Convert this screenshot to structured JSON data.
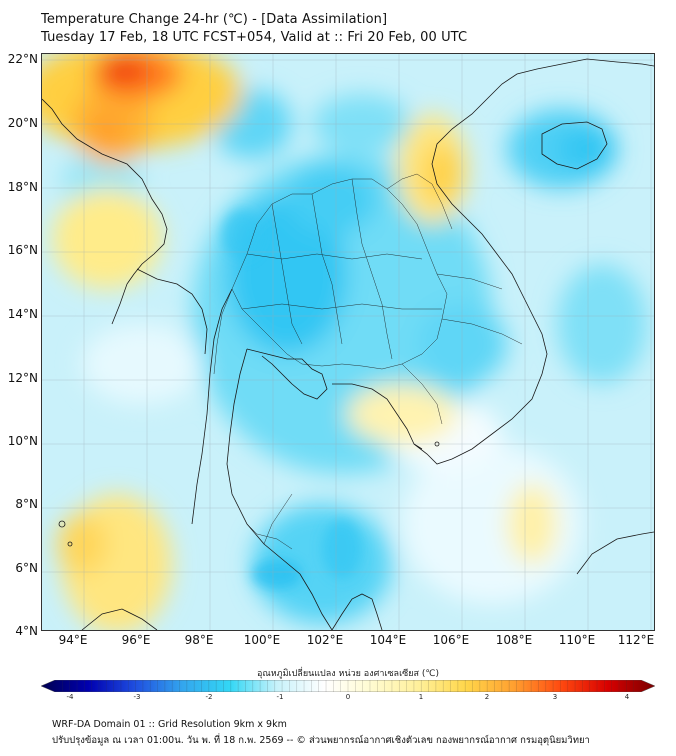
{
  "header": {
    "title_line1": "Temperature Change 24-hr (℃) - [Data Assimilation]",
    "title_line2": "Tuesday 17 Feb, 18 UTC FCST+054, Valid at :: Fri 20 Feb, 00 UTC"
  },
  "map": {
    "lat_labels": [
      "22°N",
      "20°N",
      "18°N",
      "16°N",
      "14°N",
      "12°N",
      "10°N",
      "8°N",
      "6°N",
      "4°N"
    ],
    "lon_labels": [
      "94°E",
      "96°E",
      "98°E",
      "100°E",
      "102°E",
      "104°E",
      "106°E",
      "108°E",
      "110°E",
      "112°E"
    ],
    "extent": {
      "lon_min": 93,
      "lon_max": 112.5,
      "lat_min": 4,
      "lat_max": 22
    }
  },
  "colorbar": {
    "title": "อุณหภูมิเปลี่ยนแปลง หน่วย องศาเซลเซียส (℃)",
    "ticks": [
      "-4",
      "-3",
      "-2",
      "-1",
      "0",
      "1",
      "2",
      "3",
      "4"
    ],
    "range": [
      -4,
      4
    ],
    "colors": [
      "#00004f",
      "#0000b0",
      "#1f4fe0",
      "#33a6ee",
      "#33d7f5",
      "#c8f2fa",
      "#ffffff",
      "#fffbd0",
      "#fff09a",
      "#ffd64a",
      "#ffa030",
      "#ff4a10",
      "#d80000",
      "#7a0000"
    ]
  },
  "footer": {
    "line1": "WRF-DA Domain 01 :: Grid Resolution 9km x 9km",
    "line2": "ปรับปรุงข้อมูล ณ เวลา 01:00น. วัน พ. ที่ 18 ก.พ. 2569 -- © ส่วนพยากรณ์อากาศเชิงตัวเลข กองพยากรณ์อากาศ กรมอุตุนิยมวิทยา"
  }
}
